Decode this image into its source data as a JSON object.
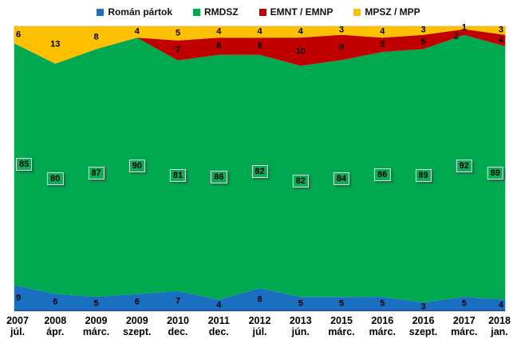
{
  "legend": {
    "position": "top",
    "items": [
      {
        "label": "Román pártok",
        "color": "#1B6FC1"
      },
      {
        "label": "RMDSZ",
        "color": "#00A850"
      },
      {
        "label": "EMNT / EMNP",
        "color": "#C00000"
      },
      {
        "label": "MPSZ / MPP",
        "color": "#FFC000"
      }
    ]
  },
  "chart_data": {
    "type": "area",
    "stacking": "percent",
    "title": "",
    "xlabel": "",
    "ylabel": "",
    "ylim": [
      0,
      100
    ],
    "grid": false,
    "legend_position": "top",
    "categories": [
      {
        "year": "2007",
        "month": "júl."
      },
      {
        "year": "2008",
        "month": "ápr."
      },
      {
        "year": "2009",
        "month": "márc."
      },
      {
        "year": "2009",
        "month": "szept."
      },
      {
        "year": "2010",
        "month": "dec."
      },
      {
        "year": "2011",
        "month": "dec."
      },
      {
        "year": "2012",
        "month": "júl."
      },
      {
        "year": "2013",
        "month": "jún."
      },
      {
        "year": "2015",
        "month": "márc."
      },
      {
        "year": "2016",
        "month": "márc."
      },
      {
        "year": "2016",
        "month": "szept."
      },
      {
        "year": "2017",
        "month": "márc."
      },
      {
        "year": "2018",
        "month": "jan."
      }
    ],
    "series": [
      {
        "name": "Román pártok",
        "color": "#1B6FC1",
        "labels_boxed": false,
        "values": [
          9,
          6,
          5,
          6,
          7,
          4,
          8,
          5,
          5,
          5,
          3,
          5,
          4
        ]
      },
      {
        "name": "RMDSZ",
        "color": "#00A850",
        "labels_boxed": true,
        "values": [
          85,
          80,
          87,
          90,
          81,
          86,
          82,
          82,
          84,
          86,
          89,
          92,
          89
        ]
      },
      {
        "name": "EMNT / EMNP",
        "color": "#C00000",
        "labels_boxed": false,
        "values": [
          0,
          0,
          0,
          0,
          7,
          6,
          6,
          10,
          9,
          5,
          5,
          2,
          4
        ]
      },
      {
        "name": "MPSZ / MPP",
        "color": "#FFC000",
        "labels_boxed": false,
        "values": [
          6,
          13,
          8,
          4,
          5,
          4,
          4,
          4,
          3,
          4,
          3,
          1,
          3
        ]
      }
    ]
  },
  "colors": {
    "background": "#FFFFFF",
    "plot_border": "#D9D9D9",
    "axis_line": "#17508A",
    "label_text": "#000000"
  }
}
